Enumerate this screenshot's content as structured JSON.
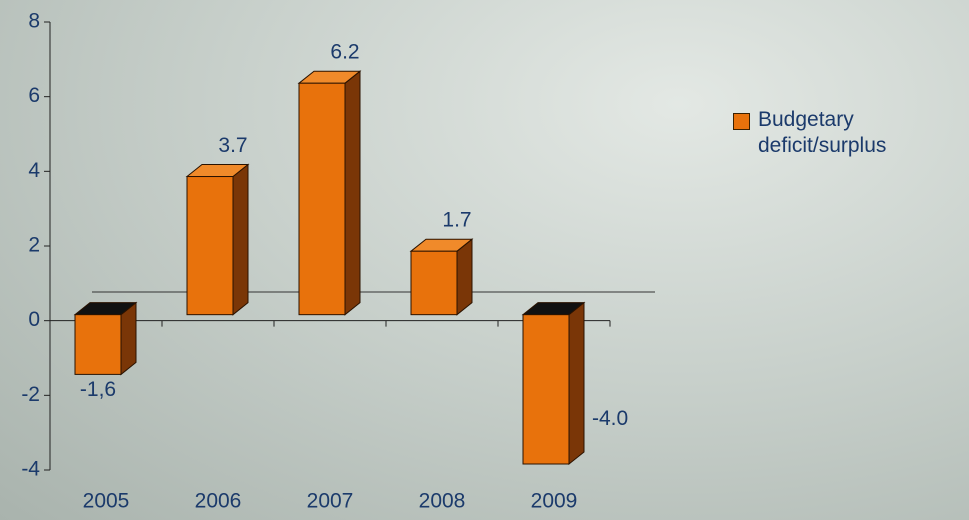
{
  "chart_data": {
    "type": "bar3d",
    "categories": [
      "2005",
      "2006",
      "2007",
      "2008",
      "2009"
    ],
    "series": [
      {
        "name": "Budgetary deficit/surplus",
        "color": "#e8720c",
        "values": [
          -1.6,
          3.7,
          6.2,
          1.7,
          -4.0
        ],
        "value_labels": [
          "-1,6",
          "3.7",
          "6.2",
          "1.7",
          "-4.0"
        ]
      }
    ],
    "ylim": [
      -4,
      8
    ],
    "yticks": [
      -4,
      -2,
      0,
      2,
      4,
      6,
      8
    ],
    "legend": "right"
  }
}
